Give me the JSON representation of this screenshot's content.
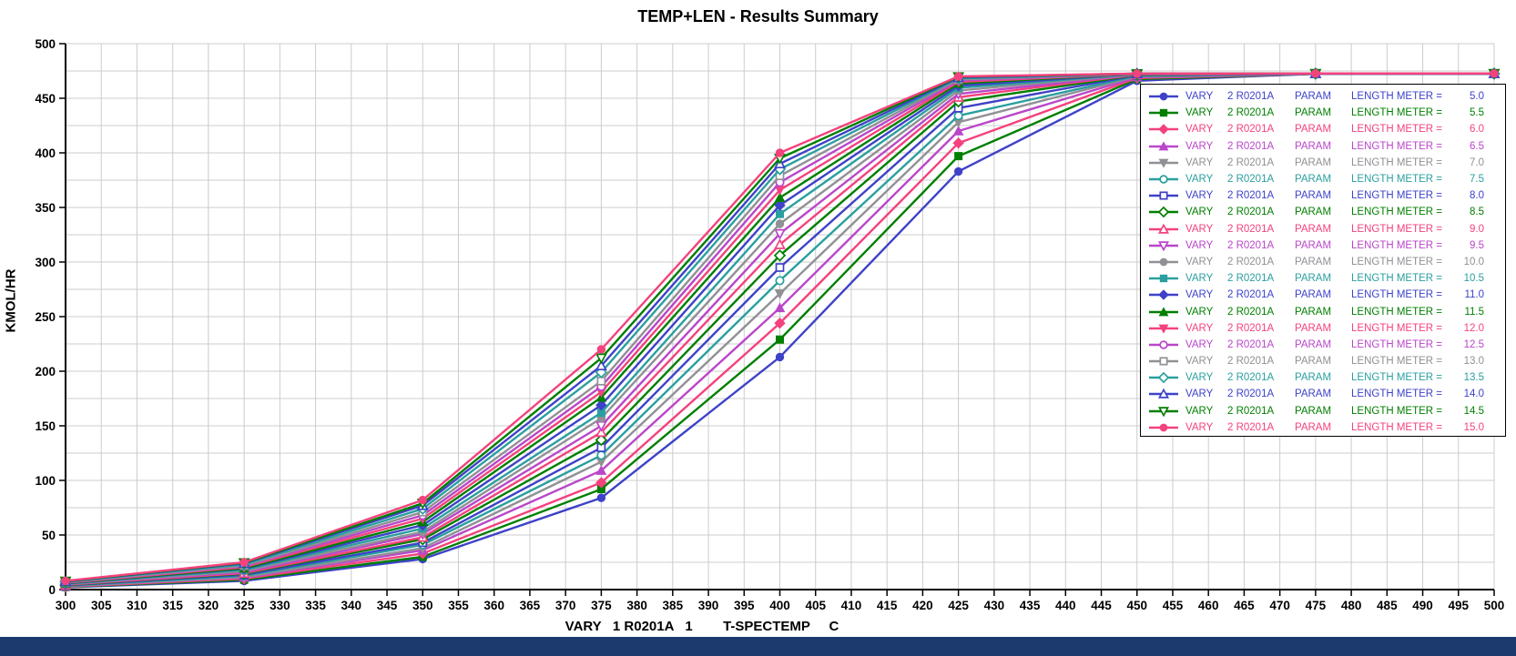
{
  "window": {
    "bottom_bar_color": "#1c3a6e",
    "background_color": "#ffffff"
  },
  "chart_data": {
    "type": "line",
    "title": "TEMP+LEN - Results Summary",
    "xlabel": "VARY   1 R0201A   1        T-SPECTEMP     C",
    "ylabel": "KMOL/HR",
    "xlim": [
      300,
      500
    ],
    "ylim": [
      0,
      500
    ],
    "x_tick_step": 5,
    "y_tick_step": 50,
    "y_grid_step": 25,
    "grid": true,
    "grid_color": "#cccccc",
    "axis_color": "#000000",
    "legend_position": "upper right",
    "legend_columns": [
      "VARY",
      "2 R0201A",
      "PARAM",
      "LENGTH METER ="
    ],
    "x": [
      300,
      325,
      350,
      375,
      400,
      425,
      450,
      475,
      500
    ],
    "series": [
      {
        "length": 5.0,
        "value_label": "5.0",
        "color": "#3e42c8",
        "marker": "circle",
        "filled": true,
        "values": [
          2.0,
          8.0,
          28,
          84,
          213,
          383,
          466.0,
          472.4,
          472.5
        ]
      },
      {
        "length": 5.5,
        "value_label": "5.5",
        "color": "#007f00",
        "marker": "square",
        "filled": true,
        "values": [
          2.3,
          9.0,
          30,
          92,
          229,
          397,
          467.5,
          472.4,
          472.5
        ]
      },
      {
        "length": 6.0,
        "value_label": "6.0",
        "color": "#f4427d",
        "marker": "diamond",
        "filled": true,
        "values": [
          2.6,
          10.0,
          33,
          98,
          244,
          409,
          468.5,
          472.4,
          472.5
        ]
      },
      {
        "length": 6.5,
        "value_label": "6.5",
        "color": "#ba46ca",
        "marker": "triangle-up",
        "filled": true,
        "values": [
          2.9,
          11.0,
          36,
          109,
          258,
          420,
          469.3,
          472.4,
          472.5
        ]
      },
      {
        "length": 7.0,
        "value_label": "7.0",
        "color": "#909095",
        "marker": "triangle-down",
        "filled": true,
        "values": [
          3.2,
          11.5,
          38,
          117,
          271,
          428,
          470.0,
          472.4,
          472.5
        ]
      },
      {
        "length": 7.5,
        "value_label": "7.5",
        "color": "#2b9f9f",
        "marker": "circle",
        "filled": false,
        "values": [
          3.5,
          12.5,
          41,
          123,
          283,
          434,
          470.5,
          472.5,
          472.5
        ]
      },
      {
        "length": 8.0,
        "value_label": "8.0",
        "color": "#3e42c8",
        "marker": "square",
        "filled": false,
        "values": [
          3.8,
          13.5,
          43,
          130,
          295,
          441,
          471.0,
          472.5,
          472.5
        ]
      },
      {
        "length": 8.5,
        "value_label": "8.5",
        "color": "#007f00",
        "marker": "diamond",
        "filled": false,
        "values": [
          4.1,
          14.5,
          46,
          137,
          306,
          447,
          471.3,
          472.5,
          472.5
        ]
      },
      {
        "length": 9.0,
        "value_label": "9.0",
        "color": "#f4427d",
        "marker": "triangle-up",
        "filled": false,
        "values": [
          4.4,
          15.0,
          48,
          144,
          316,
          451,
          471.6,
          472.5,
          472.5
        ]
      },
      {
        "length": 9.5,
        "value_label": "9.5",
        "color": "#ba46ca",
        "marker": "triangle-down",
        "filled": false,
        "values": [
          4.7,
          16.0,
          51,
          150,
          326,
          454,
          471.8,
          472.5,
          472.5
        ]
      },
      {
        "length": 10.0,
        "value_label": "10.0",
        "color": "#909095",
        "marker": "circle",
        "filled": true,
        "values": [
          5.0,
          17.0,
          53,
          157,
          335,
          457,
          472.0,
          472.5,
          472.5
        ]
      },
      {
        "length": 10.5,
        "value_label": "10.5",
        "color": "#2b9f9f",
        "marker": "square",
        "filled": true,
        "values": [
          5.3,
          18.0,
          56,
          162,
          344,
          459.5,
          472.1,
          472.5,
          472.5
        ]
      },
      {
        "length": 11.0,
        "value_label": "11.0",
        "color": "#3e42c8",
        "marker": "diamond",
        "filled": true,
        "values": [
          5.6,
          19.0,
          59,
          169,
          352,
          461.5,
          472.2,
          472.6,
          472.6
        ]
      },
      {
        "length": 11.5,
        "value_label": "11.5",
        "color": "#007f00",
        "marker": "triangle-up",
        "filled": true,
        "values": [
          5.9,
          19.5,
          62,
          176,
          359,
          463.5,
          472.3,
          472.6,
          472.6
        ]
      },
      {
        "length": 12.0,
        "value_label": "12.0",
        "color": "#f4427d",
        "marker": "triangle-down",
        "filled": true,
        "values": [
          6.2,
          20.5,
          65,
          181,
          366,
          465.0,
          472.3,
          472.6,
          472.6
        ]
      },
      {
        "length": 12.5,
        "value_label": "12.5",
        "color": "#ba46ca",
        "marker": "circle",
        "filled": false,
        "values": [
          6.5,
          21.5,
          68,
          186,
          373,
          466.3,
          472.4,
          472.6,
          472.6
        ]
      },
      {
        "length": 13.0,
        "value_label": "13.0",
        "color": "#909095",
        "marker": "square",
        "filled": false,
        "values": [
          6.8,
          22.0,
          71,
          191,
          379,
          467.3,
          472.4,
          472.6,
          472.6
        ]
      },
      {
        "length": 13.5,
        "value_label": "13.5",
        "color": "#2b9f9f",
        "marker": "diamond",
        "filled": false,
        "values": [
          7.1,
          23.0,
          74,
          199,
          385,
          468.2,
          472.5,
          472.6,
          472.6
        ]
      },
      {
        "length": 14.0,
        "value_label": "14.0",
        "color": "#3e42c8",
        "marker": "triangle-up",
        "filled": false,
        "values": [
          7.4,
          24.0,
          77,
          205,
          390,
          469.0,
          472.5,
          472.6,
          472.6
        ]
      },
      {
        "length": 14.5,
        "value_label": "14.5",
        "color": "#007f00",
        "marker": "triangle-down",
        "filled": false,
        "values": [
          7.7,
          24.5,
          79,
          212,
          395,
          469.6,
          472.5,
          472.7,
          472.7
        ]
      },
      {
        "length": 15.0,
        "value_label": "15.0",
        "color": "#f4427d",
        "marker": "circle",
        "filled": true,
        "values": [
          8.0,
          25.0,
          82,
          220,
          400,
          470.0,
          472.6,
          472.7,
          472.7
        ]
      }
    ]
  }
}
